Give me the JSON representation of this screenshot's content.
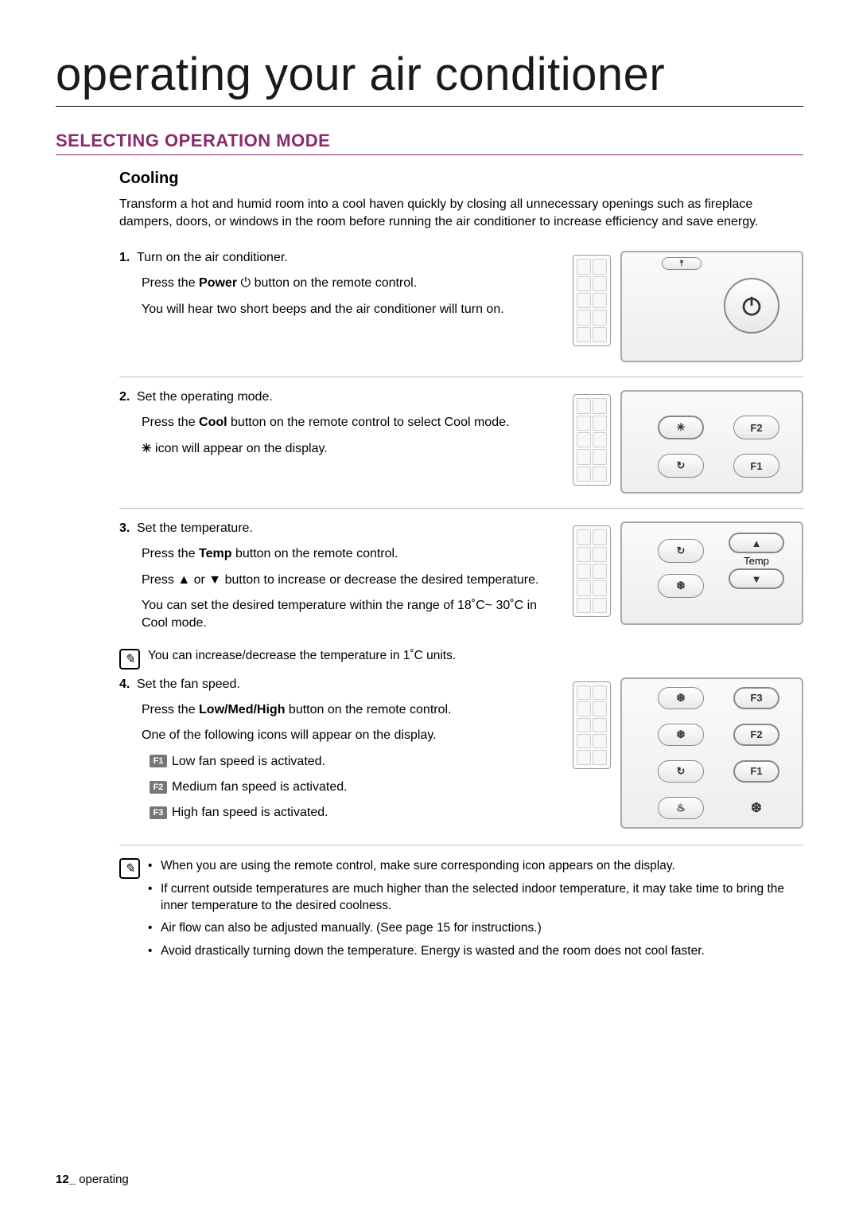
{
  "colors": {
    "accent": "#8a2a6f",
    "text": "#000000",
    "border_light": "#bfbfbf",
    "border_mid": "#999999",
    "panel_bg_top": "#fafafa",
    "panel_bg_bottom": "#eeeeee"
  },
  "page": {
    "title": "operating your air conditioner",
    "section_heading": "SELECTING OPERATION MODE",
    "sub_heading": "Cooling",
    "intro": "Transform a hot and humid room into a cool haven quickly by closing all unnecessary openings such as fireplace dampers, doors, or windows in the room before running the air conditioner to increase efficiency and save energy."
  },
  "steps": [
    {
      "num": "1.",
      "title": "Turn on the air conditioner.",
      "lines": [
        "Press the <b>Power</b> ⏻ button on the remote control.",
        "You will hear two short beeps and the air conditioner will turn on."
      ],
      "panel": "power"
    },
    {
      "num": "2.",
      "title": "Set the operating mode.",
      "lines": [
        "Press the <b>Cool</b> button on the remote control to select Cool mode.",
        "<span class='snow-icon'>✳</span> icon will appear on the display."
      ],
      "panel": "cool"
    },
    {
      "num": "3.",
      "title": "Set the temperature.",
      "lines": [
        "Press the <b>Temp</b> button on the remote control.",
        "Press ▲ or ▼ button to increase or decrease the desired temperature.",
        "You can set the desired temperature within the range of 18˚C~ 30˚C in Cool mode."
      ],
      "panel": "temp",
      "note": "You can increase/decrease the temperature in 1˚C units."
    },
    {
      "num": "4.",
      "title": "Set the fan speed.",
      "lines": [
        "Press the <b>Low/Med/High</b> button on the remote control.",
        "One of the following icons will appear on the display."
      ],
      "panel": "fan",
      "fan_rows": [
        {
          "badge": "F1",
          "text": "Low fan speed is activated."
        },
        {
          "badge": "F2",
          "text": "Medium fan speed is activated."
        },
        {
          "badge": "F3",
          "text": "High fan speed is activated."
        }
      ]
    }
  ],
  "bottom_notes": [
    "When you are using the remote control, make sure corresponding icon appears on the display.",
    "If current outside temperatures are much higher than the selected indoor temperature, it may take time to bring the inner temperature to the desired coolness.",
    "Air flow can also be adjusted manually. (See page 15 for instructions.)",
    "Avoid drastically turning down the temperature. Energy is wasted and the room does not cool faster."
  ],
  "panels": {
    "cool": {
      "btn1": "✳",
      "btn2": "F2",
      "btn3": "↻",
      "btn4": "F1"
    },
    "temp": {
      "btn1": "↻",
      "btn2_up": "▲",
      "btn2_label": "Temp",
      "btn2_down": "▼",
      "btn3": "❆"
    },
    "fan": {
      "b1": "❆",
      "b2": "F3",
      "b3": "❆",
      "b4": "F2",
      "b5": "↻",
      "b6": "F1",
      "b7": "♨",
      "b8": "❆"
    }
  },
  "footer": {
    "page_num": "12_",
    "section": " operating"
  }
}
